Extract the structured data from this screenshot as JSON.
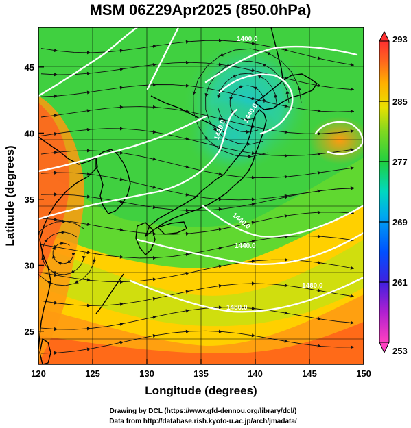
{
  "title": "MSM 06Z29Apr2025 (850.0hPa)",
  "x_axis": {
    "label": "Longitude (degrees)",
    "range": [
      120,
      150
    ],
    "ticks": [
      "120",
      "125",
      "130",
      "135",
      "140",
      "145",
      "150"
    ]
  },
  "y_axis": {
    "label": "Latitude  (degrees)",
    "range": [
      22.5,
      48
    ],
    "ticks": [
      "25",
      "30",
      "35",
      "40",
      "45"
    ]
  },
  "colorbar": {
    "ticks": [
      "293",
      "285",
      "277",
      "269",
      "261",
      "253"
    ],
    "range": [
      253,
      293
    ],
    "colors": [
      "#ff40a0",
      "#c020d0",
      "#6020e0",
      "#0040ff",
      "#0080ff",
      "#00c8e0",
      "#00e0a0",
      "#20d040",
      "#60d820",
      "#b0e020",
      "#f0e000",
      "#ffb000",
      "#ff7000",
      "#ff4020",
      "#ff3030"
    ]
  },
  "contours": {
    "labels": [
      "1440.0",
      "1480.0",
      "1480.0",
      "1400.0",
      "1420.0",
      "1440.0",
      "1440.0"
    ]
  },
  "map_colors": {
    "warm": "#ff5a1e",
    "orange": "#ff9a10",
    "yellow": "#ffe600",
    "green": "#40d040",
    "cyan": "#20d0b0"
  },
  "credits": {
    "line1": "Drawing by DCL (https://www.gfd-dennou.org/library/dcl/)",
    "line2": "Data from http://database.rish.kyoto-u.ac.jp/arch/jmadata/"
  }
}
